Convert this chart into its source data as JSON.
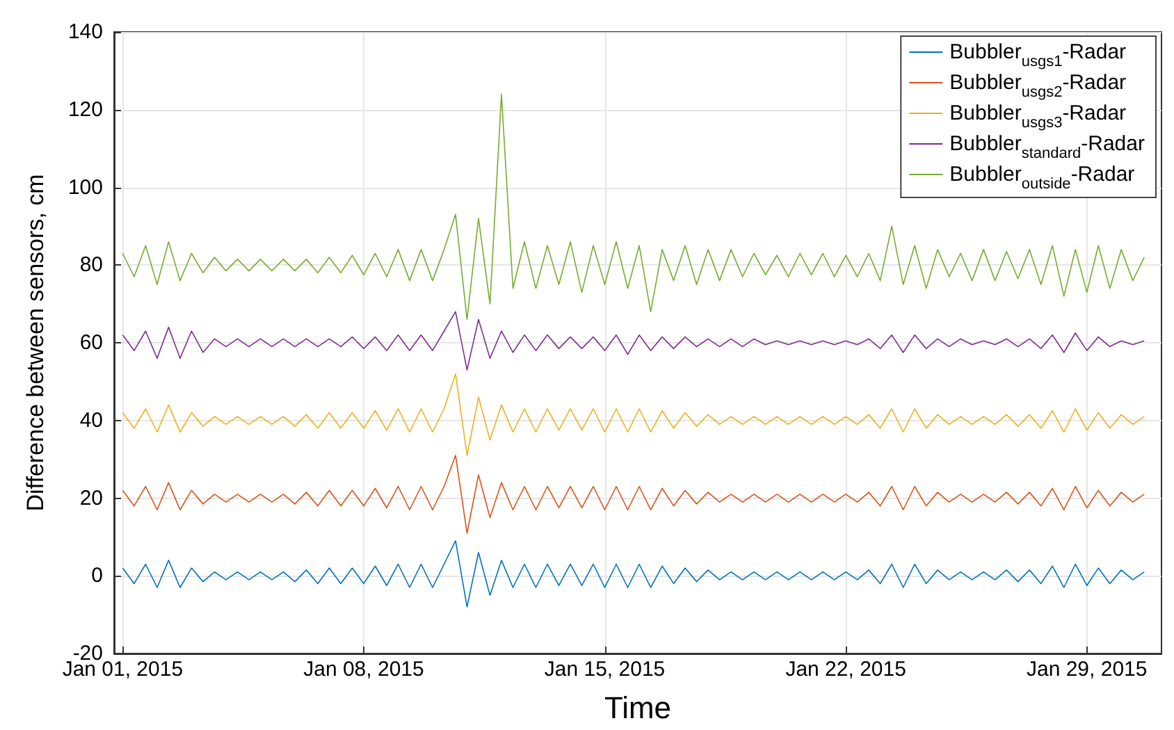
{
  "chart_data": {
    "type": "line",
    "xlabel": "Time",
    "ylabel": "Difference between sensors, cm",
    "x": [
      "2015-01-01T00:00",
      "2015-01-01T08:00",
      "2015-01-01T16:00",
      "2015-01-02T00:00",
      "2015-01-02T08:00",
      "2015-01-02T16:00",
      "2015-01-03T00:00",
      "2015-01-03T08:00",
      "2015-01-03T16:00",
      "2015-01-04T00:00",
      "2015-01-04T08:00",
      "2015-01-04T16:00",
      "2015-01-05T00:00",
      "2015-01-05T08:00",
      "2015-01-05T16:00",
      "2015-01-06T00:00",
      "2015-01-06T08:00",
      "2015-01-06T16:00",
      "2015-01-07T00:00",
      "2015-01-07T08:00",
      "2015-01-07T16:00",
      "2015-01-08T00:00",
      "2015-01-08T08:00",
      "2015-01-08T16:00",
      "2015-01-09T00:00",
      "2015-01-09T08:00",
      "2015-01-09T16:00",
      "2015-01-10T00:00",
      "2015-01-10T08:00",
      "2015-01-10T16:00",
      "2015-01-11T00:00",
      "2015-01-11T08:00",
      "2015-01-11T16:00",
      "2015-01-12T00:00",
      "2015-01-12T08:00",
      "2015-01-12T16:00",
      "2015-01-13T00:00",
      "2015-01-13T08:00",
      "2015-01-13T16:00",
      "2015-01-14T00:00",
      "2015-01-14T08:00",
      "2015-01-14T16:00",
      "2015-01-15T00:00",
      "2015-01-15T08:00",
      "2015-01-15T16:00",
      "2015-01-16T00:00",
      "2015-01-16T08:00",
      "2015-01-16T16:00",
      "2015-01-17T00:00",
      "2015-01-17T08:00",
      "2015-01-17T16:00",
      "2015-01-18T00:00",
      "2015-01-18T08:00",
      "2015-01-18T16:00",
      "2015-01-19T00:00",
      "2015-01-19T08:00",
      "2015-01-19T16:00",
      "2015-01-20T00:00",
      "2015-01-20T08:00",
      "2015-01-20T16:00",
      "2015-01-21T00:00",
      "2015-01-21T08:00",
      "2015-01-21T16:00",
      "2015-01-22T00:00",
      "2015-01-22T08:00",
      "2015-01-22T16:00",
      "2015-01-23T00:00",
      "2015-01-23T08:00",
      "2015-01-23T16:00",
      "2015-01-24T00:00",
      "2015-01-24T08:00",
      "2015-01-24T16:00",
      "2015-01-25T00:00",
      "2015-01-25T08:00",
      "2015-01-25T16:00",
      "2015-01-26T00:00",
      "2015-01-26T08:00",
      "2015-01-26T16:00",
      "2015-01-27T00:00",
      "2015-01-27T08:00",
      "2015-01-27T16:00",
      "2015-01-28T00:00",
      "2015-01-28T08:00",
      "2015-01-28T16:00",
      "2015-01-29T00:00",
      "2015-01-29T08:00",
      "2015-01-29T16:00",
      "2015-01-30T00:00",
      "2015-01-30T08:00",
      "2015-01-30T16:00"
    ],
    "series": [
      {
        "name": "Bubbler$_{usgs1}$-Radar",
        "color": "#0072bd",
        "values": [
          2,
          -2,
          3,
          -3,
          4,
          -3,
          2,
          -1.5,
          1,
          -1,
          1,
          -1,
          1,
          -1,
          1,
          -1.5,
          1.5,
          -2,
          2,
          -2,
          2,
          -2,
          2.5,
          -2.5,
          3,
          -3,
          3,
          -3,
          3,
          9,
          -8,
          6,
          -5,
          4,
          -3,
          3,
          -3,
          3,
          -2.5,
          3,
          -2.5,
          3,
          -3,
          3,
          -3,
          3,
          -3,
          2.5,
          -2,
          2,
          -1.5,
          1.5,
          -1,
          1,
          -1,
          1,
          -1,
          1,
          -1,
          1,
          -1,
          1,
          -1,
          1,
          -1,
          1.5,
          -2,
          3,
          -3,
          3,
          -2,
          1.5,
          -1,
          1,
          -1,
          1,
          -1,
          1.5,
          -1.5,
          1.5,
          -2,
          2.5,
          -3,
          3,
          -2.5,
          2,
          -2,
          1.5,
          -1,
          1
        ]
      },
      {
        "name": "Bubbler$_{usgs2}$-Radar",
        "color": "#d95319",
        "values": [
          22,
          18,
          23,
          17,
          24,
          17,
          22,
          18.5,
          21,
          19,
          21,
          19,
          21,
          19,
          21,
          18.5,
          21.5,
          18,
          22,
          18,
          22,
          18,
          22.5,
          17.5,
          23,
          17,
          23,
          17,
          23,
          31,
          11,
          26,
          15,
          24,
          17,
          23,
          17,
          23,
          17.5,
          23,
          17.5,
          23,
          17,
          23,
          17,
          23,
          17,
          22.5,
          18,
          22,
          18.5,
          21.5,
          19,
          21,
          19,
          21,
          19,
          21,
          19,
          21,
          19,
          21,
          19,
          21,
          19,
          21.5,
          18,
          23,
          17,
          23,
          18,
          21.5,
          19,
          21,
          19,
          21,
          19,
          21.5,
          18.5,
          21.5,
          18,
          22.5,
          17,
          23,
          17.5,
          22,
          18,
          21.5,
          19,
          21
        ]
      },
      {
        "name": "Bubbler$_{usgs3}$-Radar",
        "color": "#edb120",
        "values": [
          42,
          38,
          43,
          37,
          44,
          37,
          42,
          38.5,
          41,
          39,
          41,
          39,
          41,
          39,
          41,
          38.5,
          41.5,
          38,
          42,
          38,
          42,
          38,
          42.5,
          37.5,
          43,
          37,
          43,
          37,
          43,
          52,
          31,
          46,
          35,
          44,
          37,
          43,
          37,
          43,
          37.5,
          43,
          37.5,
          43,
          37,
          43,
          37,
          43,
          37,
          42.5,
          38,
          42,
          38.5,
          41.5,
          39,
          41,
          39,
          41,
          39,
          41,
          39,
          41,
          39,
          41,
          39,
          41,
          39,
          41.5,
          38,
          43,
          37,
          43,
          38,
          41.5,
          39,
          41,
          39,
          41,
          39,
          41.5,
          38.5,
          41.5,
          38,
          42.5,
          37,
          43,
          37.5,
          42,
          38,
          41.5,
          39,
          41
        ]
      },
      {
        "name": "Bubbler$_{standard}$-Radar",
        "color": "#7e2f8e",
        "values": [
          62,
          58,
          63,
          56,
          64,
          56,
          63,
          57.5,
          61,
          59,
          61,
          59,
          61,
          59,
          61,
          59,
          61,
          59,
          61,
          59,
          61.5,
          58.5,
          61.5,
          58,
          62,
          58,
          62,
          58,
          63,
          68,
          53,
          66,
          56,
          63,
          57.5,
          62,
          58,
          62,
          58.5,
          61.5,
          58.5,
          61.5,
          58,
          62,
          57,
          62,
          58,
          61.5,
          58.5,
          61.5,
          59,
          61,
          59,
          61,
          59,
          61,
          59.5,
          60.5,
          59.5,
          60.5,
          59.5,
          60.5,
          59.5,
          60.5,
          59.5,
          61,
          58.5,
          62,
          57.5,
          62,
          58.5,
          61,
          59,
          61,
          59.5,
          60.5,
          59.5,
          61,
          59,
          61,
          58.5,
          62,
          57.5,
          62.5,
          58,
          61.5,
          59,
          60.5,
          59.5,
          60.5
        ]
      },
      {
        "name": "Bubbler$_{outside}$-Radar",
        "color": "#77ac30",
        "values": [
          83,
          77,
          85,
          75,
          86,
          76,
          83,
          78,
          82,
          78.5,
          81.5,
          78.5,
          81.5,
          78.5,
          81.5,
          78.5,
          81.5,
          78,
          82,
          78,
          82.5,
          77.5,
          83,
          77,
          84,
          76,
          84,
          76,
          84,
          93,
          66,
          92,
          70,
          124,
          74,
          86,
          74,
          85,
          75,
          86,
          73,
          85,
          75,
          86,
          74,
          85,
          68,
          84,
          76,
          85,
          75,
          84,
          76,
          84,
          77,
          83,
          77.5,
          82.5,
          77,
          83,
          77.5,
          83,
          77,
          82.5,
          77,
          83,
          76,
          90,
          75,
          85,
          74,
          84,
          77,
          83,
          76,
          84,
          76,
          83.5,
          76.5,
          84,
          75,
          85,
          72,
          84,
          73,
          85,
          74,
          84,
          76,
          82
        ]
      }
    ],
    "xlim": [
      "2014-12-31T18:00",
      "2015-01-31T04:00"
    ],
    "xticks": [
      {
        "value": "2015-01-01",
        "label": "Jan 01, 2015"
      },
      {
        "value": "2015-01-08",
        "label": "Jan 08, 2015"
      },
      {
        "value": "2015-01-15",
        "label": "Jan 15, 2015"
      },
      {
        "value": "2015-01-22",
        "label": "Jan 22, 2015"
      },
      {
        "value": "2015-01-29",
        "label": "Jan 29, 2015"
      }
    ],
    "ylim": [
      -20,
      140
    ],
    "yticks": [
      -20,
      0,
      20,
      40,
      60,
      80,
      100,
      120,
      140
    ],
    "grid": true,
    "legend": "top right",
    "marker": "none",
    "line_style": "solid"
  }
}
